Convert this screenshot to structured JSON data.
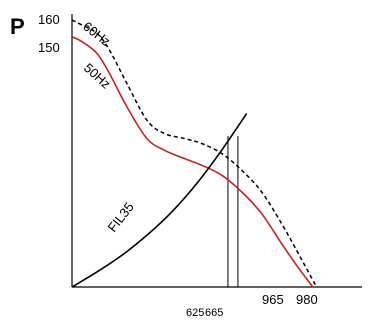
{
  "chart_data": {
    "type": "line",
    "ylabel": "P",
    "y_tick_labels": [
      {
        "value": 150,
        "label": "150"
      },
      {
        "value": 160,
        "label": "160"
      }
    ],
    "x_tick_labels": [
      {
        "value": 625,
        "label": "625"
      },
      {
        "value": 665,
        "label": "665"
      },
      {
        "value": 965,
        "label": "965"
      },
      {
        "value": 980,
        "label": "980"
      }
    ],
    "xlim": [
      0,
      1050
    ],
    "ylim": [
      0,
      160
    ],
    "series": [
      {
        "name": "60Hz",
        "style": "dashed",
        "color": "#000000",
        "x": [
          0,
          40,
          100,
          150,
          220,
          300,
          370,
          450,
          520,
          600,
          680,
          760,
          840,
          900,
          940,
          980
        ],
        "y": [
          160,
          157,
          152,
          142,
          122,
          100,
          92,
          89,
          86,
          80,
          70,
          57,
          38,
          22,
          11,
          0
        ]
      },
      {
        "name": "50Hz",
        "style": "solid",
        "color": "#cc1f1f",
        "x": [
          0,
          40,
          100,
          150,
          220,
          300,
          370,
          450,
          520,
          600,
          680,
          760,
          840,
          900,
          940,
          965
        ],
        "y": [
          150,
          147,
          140,
          128,
          108,
          89,
          82,
          77,
          73,
          67,
          57,
          44,
          26,
          13,
          5,
          0
        ]
      },
      {
        "name": "FIL35",
        "style": "solid",
        "color": "#000000",
        "x": [
          0,
          100,
          200,
          300,
          400,
          500,
          600,
          700
        ],
        "y": [
          0,
          9,
          19,
          31,
          45,
          62,
          82,
          104
        ]
      }
    ],
    "vertical_lines": [
      625,
      665
    ]
  }
}
